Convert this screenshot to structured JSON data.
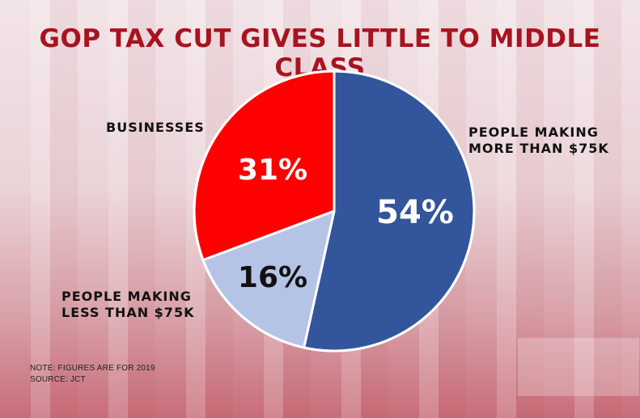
{
  "title": "GOP TAX CUT GIVES LITTLE TO MIDDLE CLASS",
  "labels": {
    "businesses": "BUSINESSES",
    "more": "PEOPLE MAKING\nMORE THAN $75K",
    "less": "PEOPLE MAKING\nLESS THAN $75K"
  },
  "notes": {
    "note": "NOTE: FIGURES ARE FOR 2019",
    "source": "SOURCE: JCT"
  },
  "chart_data": {
    "type": "pie",
    "title": "GOP TAX CUT GIVES LITTLE TO MIDDLE CLASS",
    "slices": [
      {
        "label": "PEOPLE MAKING MORE THAN $75K",
        "value": 54,
        "display": "54%",
        "color": "#33559c",
        "text_color": "#ffffff"
      },
      {
        "label": "PEOPLE MAKING LESS THAN $75K",
        "value": 16,
        "display": "16%",
        "color": "#b5c4e6",
        "text_color": "#111111"
      },
      {
        "label": "BUSINESSES",
        "value": 31,
        "display": "31%",
        "color": "#ff0000",
        "text_color": "#ffffff"
      }
    ]
  }
}
